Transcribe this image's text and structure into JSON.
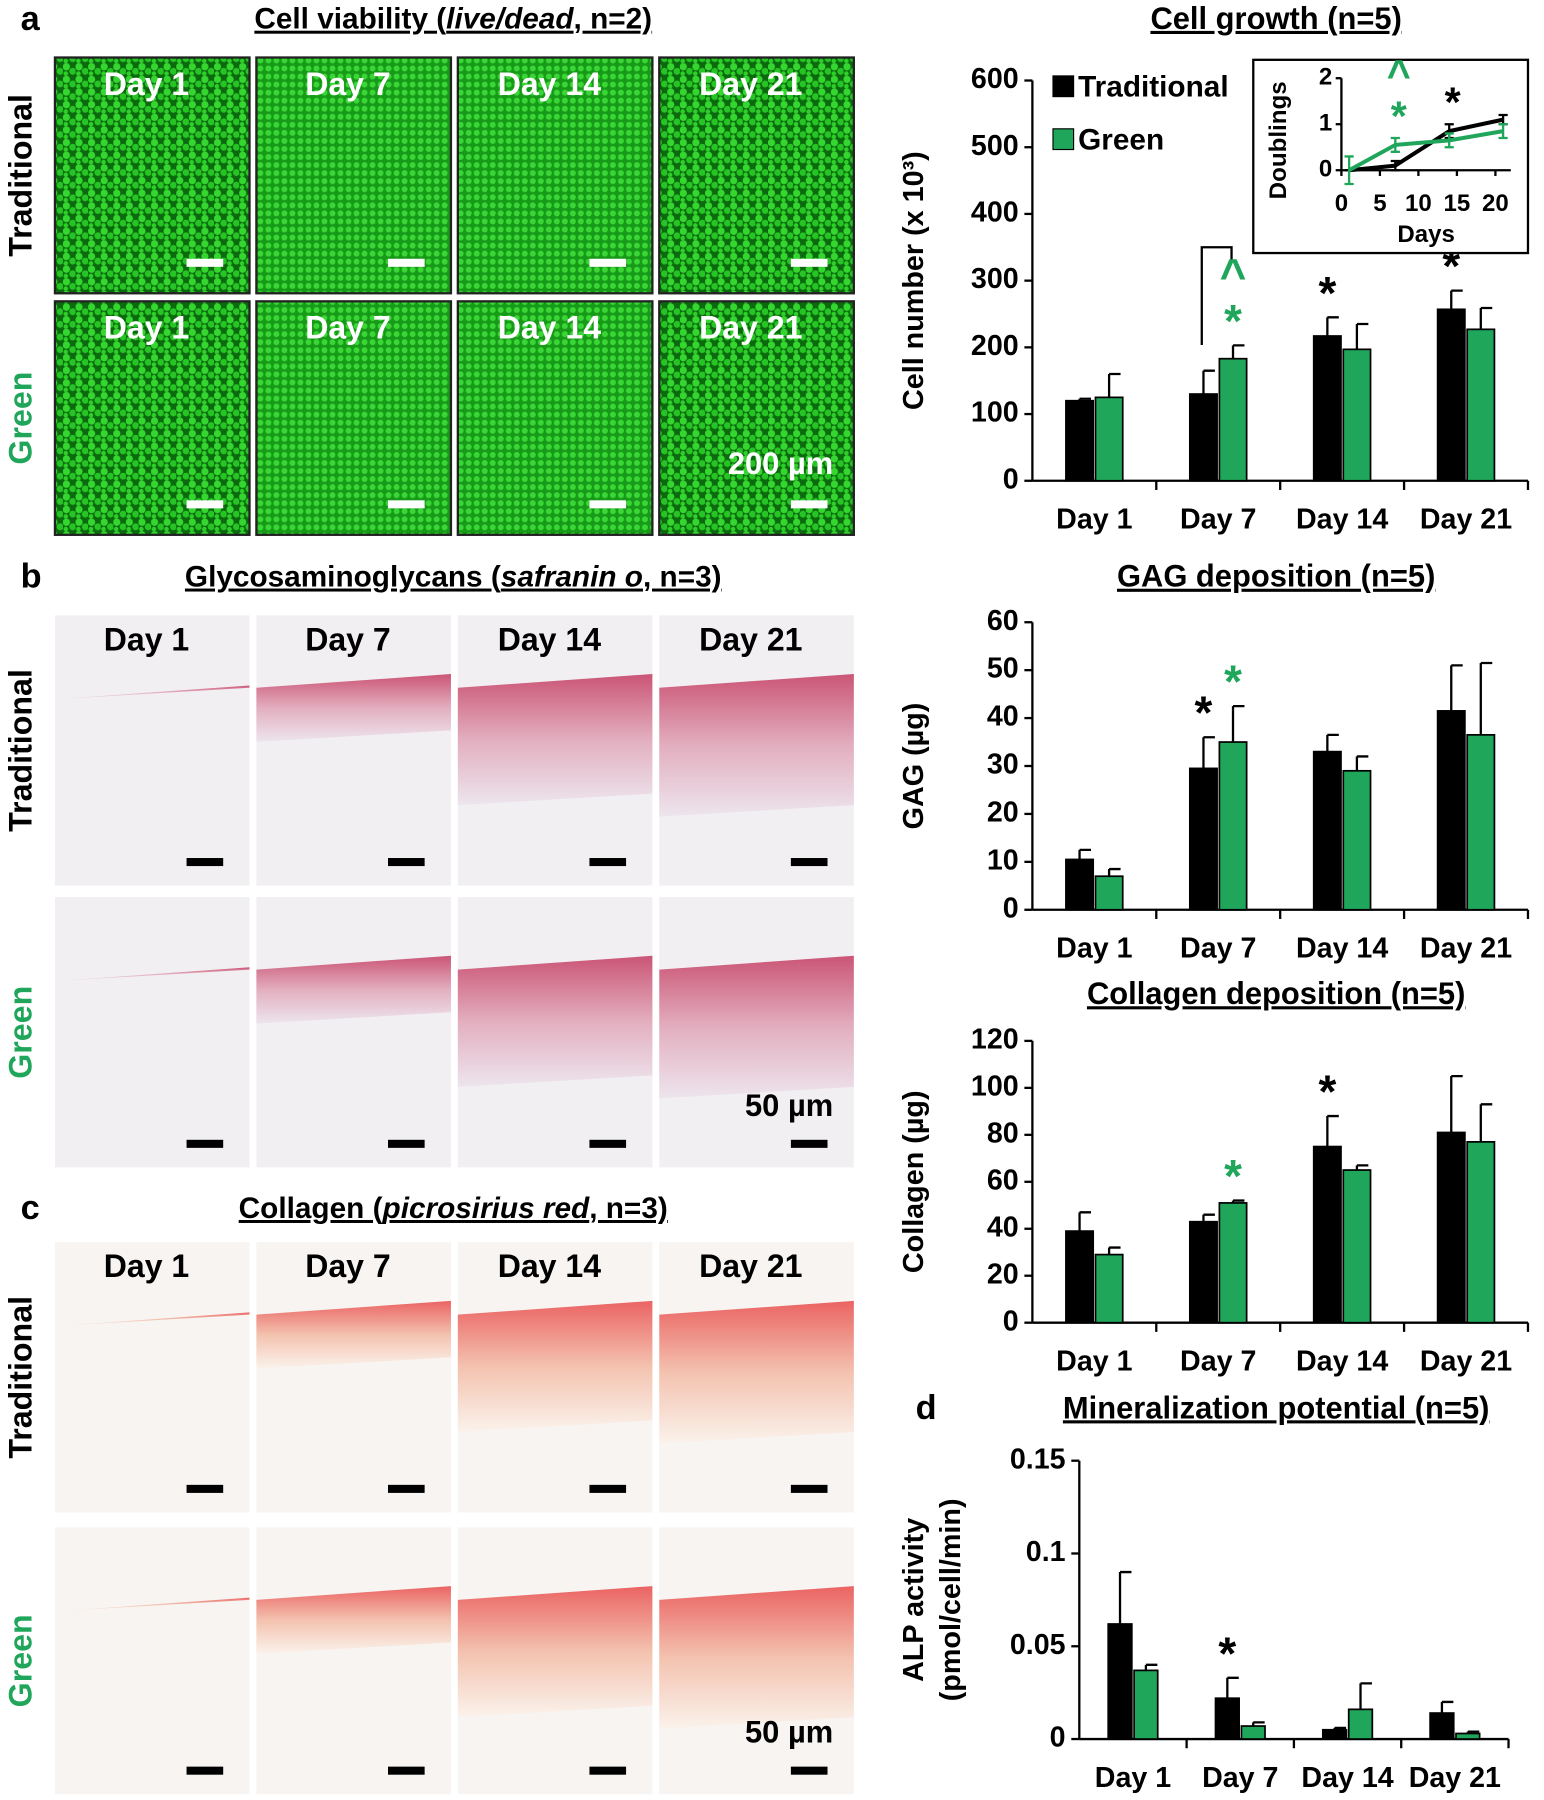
{
  "figure": {
    "panel_letters": [
      "a",
      "b",
      "c",
      "d"
    ],
    "image_panels": [
      {
        "title": [
          "Cell viability (",
          "live/dead",
          ", n=2)"
        ],
        "days": [
          "Day 1",
          "Day 7",
          "Day 14",
          "Day 21"
        ],
        "rows": [
          "Traditional",
          "Green"
        ],
        "scale": "200 µm"
      },
      {
        "title": [
          "Glycosaminoglycans (",
          "safranin o",
          ", n=3)"
        ],
        "days": [
          "Day 1",
          "Day 7",
          "Day 14",
          "Day 21"
        ],
        "rows": [
          "Traditional",
          "Green"
        ],
        "scale": "50 µm"
      },
      {
        "title": [
          "Collagen (",
          "picrosirius red",
          ", n=3)"
        ],
        "days": [
          "Day 1",
          "Day 7",
          "Day 14",
          "Day 21"
        ],
        "rows": [
          "Traditional",
          "Green"
        ],
        "scale": "50 µm"
      }
    ]
  },
  "chart_data": [
    {
      "type": "bar",
      "title": "Cell growth (n=5)",
      "y_label": "Cell number (x 10³)",
      "categories": [
        "Day 1",
        "Day 7",
        "Day 14",
        "Day 21"
      ],
      "series": [
        {
          "name": "Traditional",
          "color": "#000000",
          "values": [
            120,
            130,
            217,
            257
          ],
          "errors": [
            3,
            35,
            28,
            28
          ]
        },
        {
          "name": "Green",
          "color": "#1fa65a",
          "values": [
            125,
            183,
            197,
            227
          ],
          "errors": [
            35,
            20,
            38,
            32
          ]
        }
      ],
      "ylim": [
        0,
        600
      ],
      "yticks": [
        0,
        100,
        200,
        300,
        400,
        500,
        600
      ],
      "legend": "top-left",
      "annotations": [
        {
          "text": "*",
          "category": "Day 7",
          "series": "Green"
        },
        {
          "text": "^",
          "category": "Day 7",
          "series": "Green"
        },
        {
          "text": "*",
          "category": "Day 14",
          "series": "Traditional"
        },
        {
          "text": "*",
          "category": "Day 21",
          "series": "Traditional"
        }
      ]
    },
    {
      "type": "line",
      "x_label": "Days",
      "y_label": "Doublings",
      "x": [
        1,
        7,
        14,
        21
      ],
      "series": [
        {
          "name": "Traditional",
          "color": "#000000",
          "values": [
            0,
            0.1,
            0.85,
            1.1
          ],
          "errors": [
            0,
            0.1,
            0.15,
            0.1
          ]
        },
        {
          "name": "Green",
          "color": "#1fa65a",
          "values": [
            0,
            0.55,
            0.65,
            0.85
          ],
          "errors": [
            0.3,
            0.15,
            0.15,
            0.15
          ]
        }
      ],
      "xlim": [
        0,
        22
      ],
      "xticks": [
        0,
        5,
        10,
        15,
        20
      ],
      "ylim": [
        0,
        2
      ],
      "yticks": [
        0,
        1,
        2
      ],
      "annotations": [
        {
          "text": "*",
          "x": 7,
          "series": "Green"
        },
        {
          "text": "^",
          "x": 7,
          "series": "Green"
        },
        {
          "text": "*",
          "x": 14,
          "series": "Traditional"
        }
      ]
    },
    {
      "type": "bar",
      "title": "GAG deposition (n=5)",
      "y_label": "GAG (µg)",
      "categories": [
        "Day 1",
        "Day 7",
        "Day 14",
        "Day 21"
      ],
      "series": [
        {
          "name": "Traditional",
          "color": "#000000",
          "values": [
            10.5,
            29.5,
            33,
            41.5
          ],
          "errors": [
            2,
            6.5,
            3.5,
            9.5
          ]
        },
        {
          "name": "Green",
          "color": "#1fa65a",
          "values": [
            7,
            35,
            29,
            36.5
          ],
          "errors": [
            1.5,
            7.5,
            3,
            15
          ]
        }
      ],
      "ylim": [
        0,
        60
      ],
      "yticks": [
        0,
        10,
        20,
        30,
        40,
        50,
        60
      ],
      "annotations": [
        {
          "text": "*",
          "category": "Day 7",
          "series": "Traditional"
        },
        {
          "text": "*",
          "category": "Day 7",
          "series": "Green"
        }
      ]
    },
    {
      "type": "bar",
      "title": "Collagen deposition (n=5)",
      "y_label": "Collagen (µg)",
      "categories": [
        "Day 1",
        "Day 7",
        "Day 14",
        "Day 21"
      ],
      "series": [
        {
          "name": "Traditional",
          "color": "#000000",
          "values": [
            39,
            43,
            75,
            81
          ],
          "errors": [
            8,
            3,
            13,
            24
          ]
        },
        {
          "name": "Green",
          "color": "#1fa65a",
          "values": [
            29,
            51,
            65,
            77
          ],
          "errors": [
            3,
            1,
            2,
            16
          ]
        }
      ],
      "ylim": [
        0,
        120
      ],
      "yticks": [
        0,
        20,
        40,
        60,
        80,
        100,
        120
      ],
      "annotations": [
        {
          "text": "*",
          "category": "Day 7",
          "series": "Green"
        },
        {
          "text": "*",
          "category": "Day 14",
          "series": "Traditional"
        }
      ]
    },
    {
      "type": "bar",
      "title": "Mineralization potential (n=5)",
      "y_label": [
        "ALP activity",
        "(pmol/cell/min)"
      ],
      "categories": [
        "Day 1",
        "Day 7",
        "Day 14",
        "Day 21"
      ],
      "series": [
        {
          "name": "Traditional",
          "color": "#000000",
          "values": [
            0.062,
            0.022,
            0.005,
            0.014
          ],
          "errors": [
            0.028,
            0.011,
            0.001,
            0.006
          ]
        },
        {
          "name": "Green",
          "color": "#1fa65a",
          "values": [
            0.037,
            0.007,
            0.016,
            0.003
          ],
          "errors": [
            0.003,
            0.002,
            0.014,
            0.001
          ]
        }
      ],
      "ylim": [
        0,
        0.15
      ],
      "yticks": [
        0,
        0.05,
        0.1,
        0.15
      ],
      "annotations": [
        {
          "text": "*",
          "category": "Day 7",
          "series": "Traditional"
        }
      ]
    }
  ]
}
